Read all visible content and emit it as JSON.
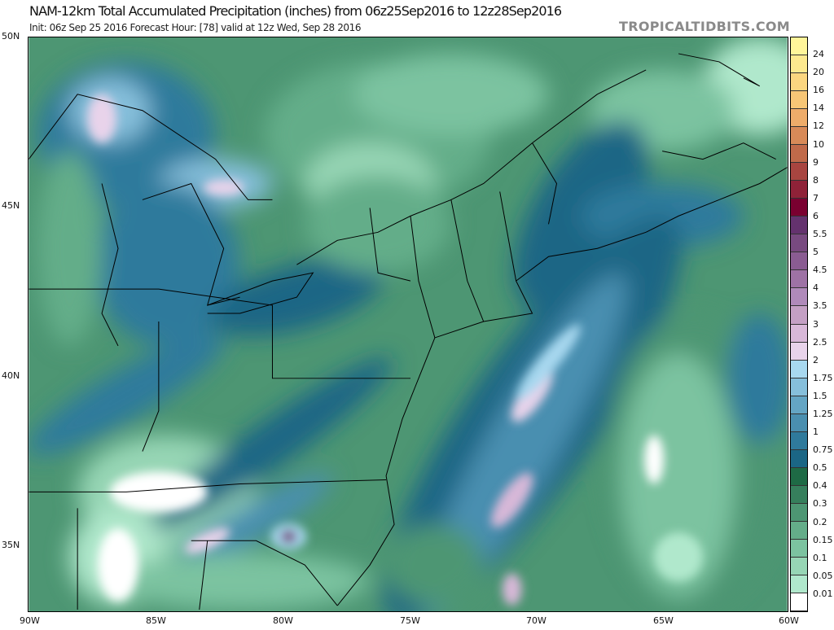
{
  "header": {
    "title": "NAM-12km Total Accumulated Precipitation (inches) from 06z25Sep2016 to 12z28Sep2016",
    "subtitle": "Init: 06z Sep 25 2016   Forecast Hour: [78]   valid at 12z Wed, Sep 28 2016",
    "watermark": "TROPICALTIDBITS.COM"
  },
  "axes": {
    "lat_labels": [
      "50N",
      "45N",
      "40N",
      "35N"
    ],
    "lon_labels": [
      "90W",
      "85W",
      "80W",
      "75W",
      "70W",
      "65W",
      "60W"
    ]
  },
  "colorbar": {
    "labels": [
      "24",
      "20",
      "16",
      "14",
      "12",
      "10",
      "9",
      "8",
      "7",
      "6",
      "5.5",
      "5",
      "4.5",
      "4",
      "3.5",
      "3",
      "2.5",
      "2",
      "1.75",
      "1.5",
      "1.25",
      "1",
      "0.75",
      "0.5",
      "0.4",
      "0.3",
      "0.2",
      "0.15",
      "0.1",
      "0.05",
      "0.01"
    ],
    "colors_top_to_bottom": [
      "#fff59a",
      "#fde98f",
      "#fbd680",
      "#f7c676",
      "#eeac6a",
      "#d88a58",
      "#c06a4a",
      "#a84540",
      "#8f2238",
      "#7a0030",
      "#64326e",
      "#784a80",
      "#8a5c92",
      "#9e72a5",
      "#b08aba",
      "#c4a0c4",
      "#d8b8d8",
      "#e8d3ea",
      "#a8d8ef",
      "#86bfdb",
      "#64a5c4",
      "#4a8fb0",
      "#2f7a9c",
      "#1b6685",
      "#1e6a45",
      "#367f5c",
      "#4d9673",
      "#64ad89",
      "#7cc3a0",
      "#97d6b5",
      "#b0e8cc",
      "#ffffff"
    ]
  }
}
